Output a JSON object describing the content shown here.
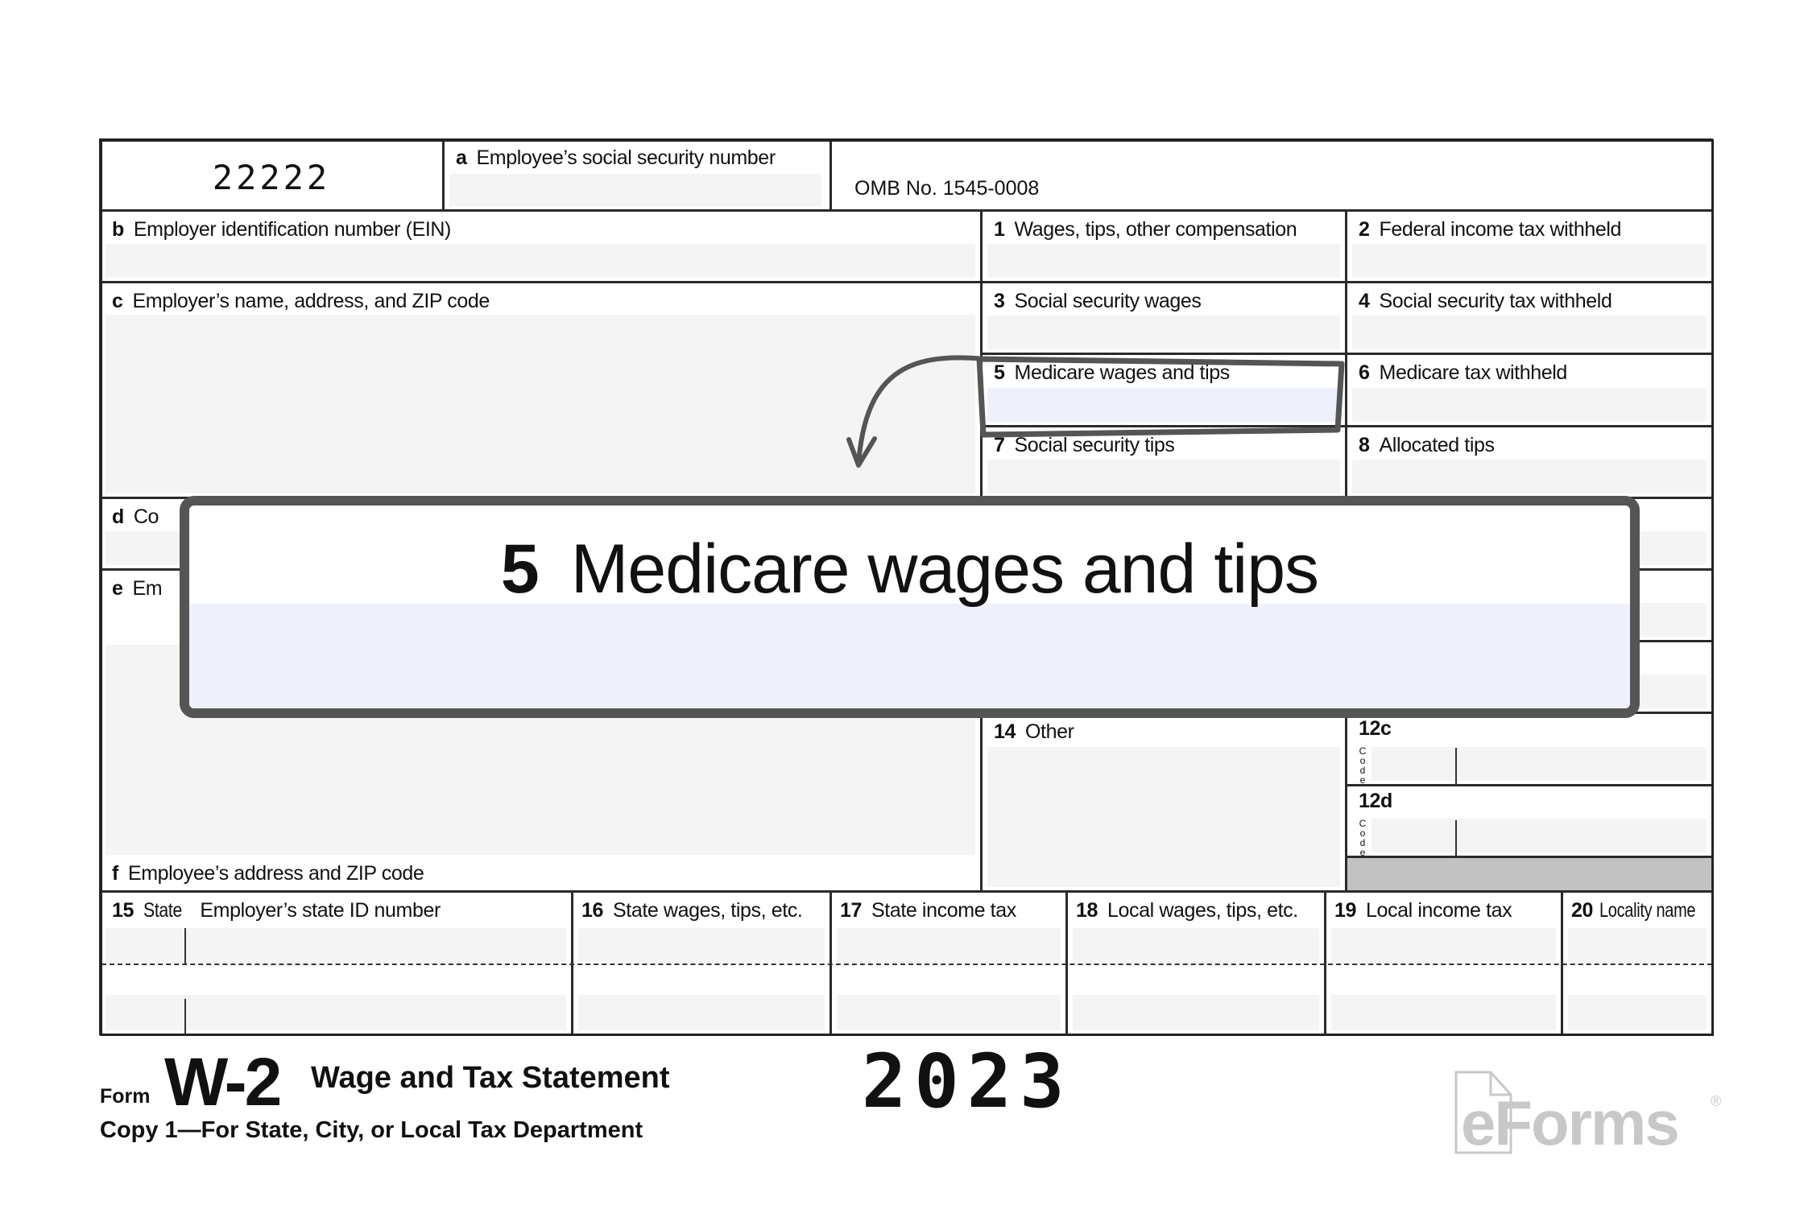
{
  "form_code": "22222",
  "omb": "OMB No. 1545-0008",
  "boxes": {
    "a": {
      "num": "a",
      "label": "Employee’s social security number"
    },
    "b": {
      "num": "b",
      "label": "Employer identification number (EIN)"
    },
    "c": {
      "num": "c",
      "label": "Employer’s name, address, and ZIP code"
    },
    "d": {
      "num": "d",
      "label": "Co"
    },
    "e": {
      "num": "e",
      "label": "Em"
    },
    "f": {
      "num": "f",
      "label": "Employee’s address and ZIP code"
    },
    "b1": {
      "num": "1",
      "label": "Wages, tips, other compensation"
    },
    "b2": {
      "num": "2",
      "label": "Federal income tax withheld"
    },
    "b3": {
      "num": "3",
      "label": "Social security wages"
    },
    "b4": {
      "num": "4",
      "label": "Social security tax withheld"
    },
    "b5": {
      "num": "5",
      "label": "Medicare wages and tips"
    },
    "b6": {
      "num": "6",
      "label": "Medicare tax withheld"
    },
    "b7": {
      "num": "7",
      "label": "Social security tips"
    },
    "b8": {
      "num": "8",
      "label": "Allocated tips"
    },
    "b14": {
      "num": "14",
      "label": "Other"
    },
    "b12c": {
      "num": "12c",
      "code": "C o d e"
    },
    "b12d": {
      "num": "12d",
      "code": "C o d e"
    },
    "b15": {
      "num": "15",
      "label": "State",
      "label2": "Employer’s state ID number"
    },
    "b16": {
      "num": "16",
      "label": "State wages, tips, etc."
    },
    "b17": {
      "num": "17",
      "label": "State income tax"
    },
    "b18": {
      "num": "18",
      "label": "Local wages, tips, etc."
    },
    "b19": {
      "num": "19",
      "label": "Local income tax"
    },
    "b20": {
      "num": "20",
      "label": "Locality name"
    }
  },
  "callout": {
    "num": "5",
    "label": "Medicare wages and tips",
    "highlight_color": "#eef1fc",
    "stroke_color": "#555555"
  },
  "footer": {
    "form_word": "Form",
    "form_name": "W-2",
    "title": "Wage and Tax Statement",
    "year": "2023",
    "copy": "Copy 1—For State, City, or Local Tax Department"
  },
  "logo": {
    "text": "eForms",
    "mark": "®"
  }
}
